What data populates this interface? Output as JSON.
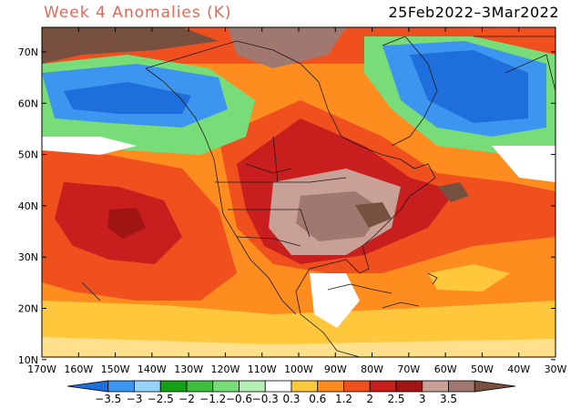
{
  "title": "Week 4 Anomalies (K)",
  "date_range": "25Feb2022–3Mar2022",
  "map": {
    "lat_labels": [
      "70N",
      "60N",
      "50N",
      "40N",
      "30N",
      "20N",
      "10N"
    ],
    "lon_labels": [
      "170W",
      "160W",
      "150W",
      "140W",
      "130W",
      "120W",
      "110W",
      "100W",
      "90W",
      "80W",
      "70W",
      "60W",
      "50W",
      "40W",
      "30W"
    ]
  },
  "colorbar": {
    "ticks": [
      "−3.5",
      "−3",
      "−2.5",
      "−2",
      "−1.2",
      "−0.6",
      "−0.3",
      "0.3",
      "0.6",
      "1.2",
      "2",
      "2.5",
      "3",
      "3.5"
    ],
    "colors": [
      "#1e6edc",
      "#3c96f0",
      "#96d2fa",
      "#14a014",
      "#3cbe3c",
      "#78dc78",
      "#b4f0b4",
      "#ffffff",
      "#ffc83c",
      "#ff8c1e",
      "#f0501e",
      "#c81e1e",
      "#a01414",
      "#c8a096",
      "#a07870",
      "#785040"
    ]
  },
  "colors": {
    "title": "#e06a5a",
    "frame": "#000000"
  }
}
